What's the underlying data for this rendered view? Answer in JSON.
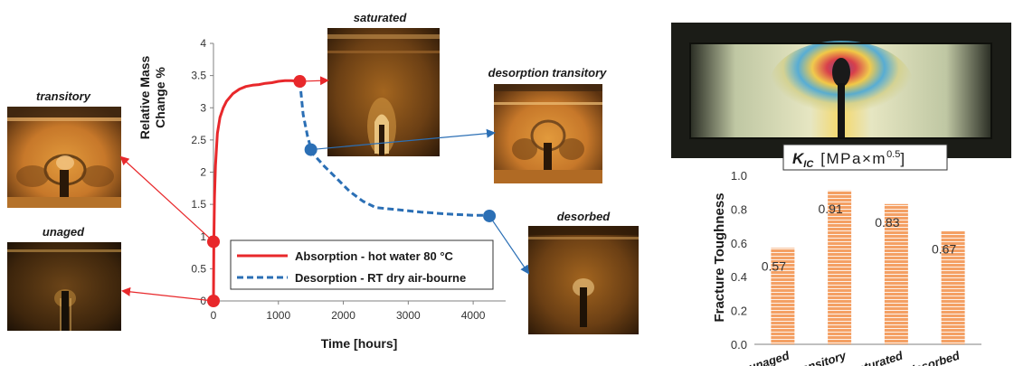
{
  "colors": {
    "absorption": "#e8282b",
    "desorption": "#2b6fb5",
    "bar_fill": "#f4a064",
    "bar_stripe": "#ffffff",
    "axis": "#808080",
    "text": "#1a1a1a"
  },
  "images": {
    "transitory": "transitory",
    "unaged": "unaged",
    "saturated": "saturated",
    "desorption_transitory": "desorption transitory",
    "desorbed": "desorbed"
  },
  "chart_data": [
    {
      "type": "line",
      "title": "",
      "xlabel": "Time [hours]",
      "ylabel": "Relative Mass Change %",
      "xlim": [
        0,
        4500
      ],
      "ylim": [
        0,
        4
      ],
      "x_ticks": [
        "0",
        "1000",
        "2000",
        "3000",
        "4000"
      ],
      "y_ticks": [
        "0",
        "0.5",
        "1",
        "1.5",
        "2",
        "2.5",
        "3",
        "3.5",
        "4"
      ],
      "legend_position": "bottom-center",
      "series": [
        {
          "name": "Absorption - hot water 80 °C",
          "style": "solid",
          "color": "#e8282b",
          "x": [
            0,
            5,
            15,
            30,
            60,
            100,
            150,
            200,
            300,
            400,
            500,
            600,
            700,
            800,
            900,
            1000,
            1100,
            1200,
            1330
          ],
          "y": [
            0,
            0.9,
            1.6,
            2.1,
            2.6,
            2.85,
            3.0,
            3.1,
            3.22,
            3.29,
            3.33,
            3.35,
            3.36,
            3.38,
            3.39,
            3.41,
            3.42,
            3.42,
            3.41
          ]
        },
        {
          "name": "Desorption - RT dry air-bourne",
          "style": "dashed",
          "color": "#2b6fb5",
          "x": [
            1330,
            1380,
            1450,
            1520,
            1700,
            1900,
            2100,
            2300,
            2500,
            2800,
            3200,
            3600,
            4000,
            4250
          ],
          "y": [
            3.41,
            2.9,
            2.55,
            2.3,
            2.1,
            1.9,
            1.7,
            1.55,
            1.45,
            1.42,
            1.38,
            1.35,
            1.33,
            1.33
          ]
        }
      ],
      "markers": [
        {
          "x": 0,
          "y": 0,
          "color": "#e8282b"
        },
        {
          "x": 0,
          "y": 0.92,
          "color": "#e8282b"
        },
        {
          "x": 1330,
          "y": 3.41,
          "color": "#e8282b"
        },
        {
          "x": 1500,
          "y": 2.35,
          "color": "#2b6fb5"
        },
        {
          "x": 4250,
          "y": 1.32,
          "color": "#2b6fb5"
        }
      ]
    },
    {
      "type": "bar",
      "title_main": "K",
      "title_sub": "IC",
      "title_units": "[MPa×m",
      "title_exp": "0.5",
      "title_close": "]",
      "ylabel": "Fracture Toughness",
      "xlabel": "",
      "ylim": [
        0,
        1.0
      ],
      "y_ticks": [
        "0.0",
        "0.2",
        "0.4",
        "0.6",
        "0.8",
        "1.0"
      ],
      "categories": [
        "unaged",
        "transitory",
        "saturated",
        "desorbed"
      ],
      "values": [
        0.57,
        0.91,
        0.83,
        0.67
      ],
      "value_labels": [
        "0.57",
        "0.91",
        "0.83",
        "0.67"
      ]
    }
  ]
}
